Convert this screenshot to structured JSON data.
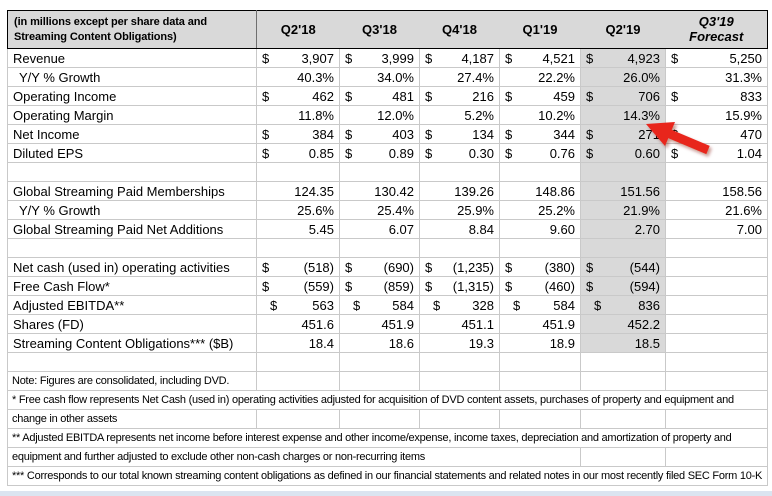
{
  "table": {
    "unit_note": "(in millions except per share data and Streaming Content Obligations)",
    "columns": [
      {
        "label": "Q2'18"
      },
      {
        "label": "Q3'18"
      },
      {
        "label": "Q4'18"
      },
      {
        "label": "Q1'19"
      },
      {
        "label": "Q2'19",
        "highlight": true
      },
      {
        "label": "Q3'19",
        "sublabel": "Forecast",
        "forecast": true
      }
    ],
    "rows": [
      {
        "label": "Revenue",
        "type": "currency",
        "values": [
          "3,907",
          "3,999",
          "4,187",
          "4,521",
          "4,923",
          "5,250"
        ]
      },
      {
        "label": "Y/Y % Growth",
        "indent": true,
        "type": "plain",
        "values": [
          "40.3%",
          "34.0%",
          "27.4%",
          "22.2%",
          "26.0%",
          "31.3%"
        ]
      },
      {
        "label": "Operating Income",
        "type": "currency",
        "values": [
          "462",
          "481",
          "216",
          "459",
          "706",
          "833"
        ]
      },
      {
        "label": "Operating Margin",
        "type": "plain",
        "values": [
          "11.8%",
          "12.0%",
          "5.2%",
          "10.2%",
          "14.3%",
          "15.9%"
        ]
      },
      {
        "label": "Net Income",
        "type": "currency",
        "values": [
          "384",
          "403",
          "134",
          "344",
          "271",
          "470"
        ]
      },
      {
        "label": "Diluted EPS",
        "type": "currency",
        "values": [
          "0.85",
          "0.89",
          "0.30",
          "0.76",
          "0.60",
          "1.04"
        ]
      },
      {
        "label": "",
        "type": "blank",
        "values": [
          "",
          "",
          "",
          "",
          "",
          ""
        ]
      },
      {
        "label": "Global Streaming Paid Memberships",
        "type": "plain",
        "values": [
          "124.35",
          "130.42",
          "139.26",
          "148.86",
          "151.56",
          "158.56"
        ]
      },
      {
        "label": "Y/Y % Growth",
        "indent": true,
        "type": "plain",
        "values": [
          "25.6%",
          "25.4%",
          "25.9%",
          "25.2%",
          "21.9%",
          "21.6%"
        ]
      },
      {
        "label": "Global Streaming Paid Net Additions",
        "type": "plain",
        "values": [
          "5.45",
          "6.07",
          "8.84",
          "9.60",
          "2.70",
          "7.00"
        ]
      },
      {
        "label": "",
        "type": "blank",
        "values": [
          "",
          "",
          "",
          "",
          "",
          ""
        ]
      },
      {
        "label": "Net cash (used in) operating activities",
        "type": "currency",
        "values": [
          "(518)",
          "(690)",
          "(1,235)",
          "(380)",
          "(544)",
          ""
        ]
      },
      {
        "label": "Free Cash Flow*",
        "type": "currency",
        "values": [
          "(559)",
          "(859)",
          "(1,315)",
          "(460)",
          "(594)",
          ""
        ]
      },
      {
        "label": "Adjusted EBITDA**",
        "type": "currency",
        "dollar_indent": true,
        "values": [
          "563",
          "584",
          "328",
          "584",
          "836",
          ""
        ]
      },
      {
        "label": "Shares (FD)",
        "type": "plain",
        "values": [
          "451.6",
          "451.9",
          "451.1",
          "451.9",
          "452.2",
          ""
        ]
      },
      {
        "label": "Streaming Content Obligations*** ($B)",
        "type": "plain",
        "values": [
          "18.4",
          "18.6",
          "19.3",
          "18.9",
          "18.5",
          ""
        ]
      }
    ],
    "notes": [
      {
        "text": "",
        "span": 1
      },
      {
        "text": "Note: Figures are consolidated, including DVD.",
        "span": 1
      },
      {
        "text": "* Free cash flow represents Net Cash (used in) operating activities adjusted for acquisition of DVD content assets, purchases of property and equipment and",
        "span": 7
      },
      {
        "text": " change in other assets",
        "span": 1
      },
      {
        "text": "** Adjusted EBITDA represents net income before interest expense and other income/expense, income taxes, depreciation and amortization of property and",
        "span": 7
      },
      {
        "text": "equipment and further adjusted to exclude other non-cash charges or non-recurring items",
        "span": 5
      },
      {
        "text": "*** Corresponds to our total known streaming content obligations as defined in our financial statements and related notes in our most recently filed SEC Form 10-K",
        "span": 7
      }
    ]
  },
  "annotation": {
    "arrow_points_to": "Q2'19 Operating Margin 14.3%"
  },
  "colors": {
    "header_bg": "#d9d9d9",
    "highlight_col_bg": "#d9d9d9",
    "gridline": "#c9c9c9",
    "border": "#000000",
    "arrow": "#e8251d",
    "bottom_strip": "#dbe4f0"
  }
}
